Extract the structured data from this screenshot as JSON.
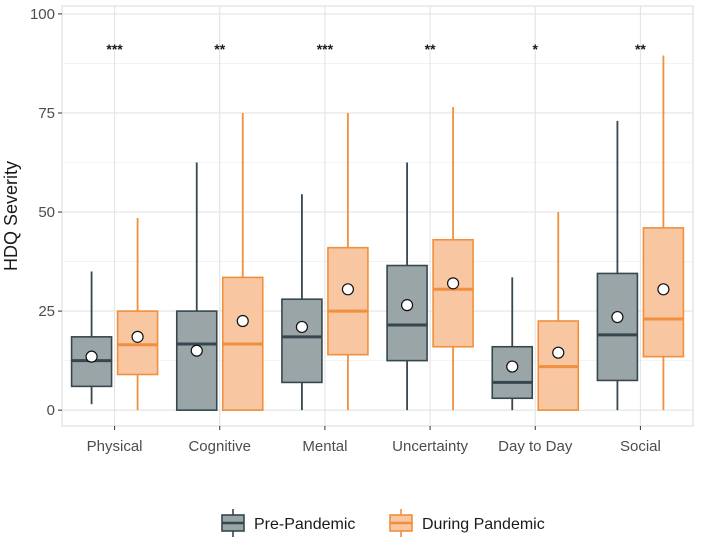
{
  "chart_data": {
    "type": "boxplot",
    "title": "",
    "xlabel": "",
    "ylabel": "HDQ Severity",
    "ylim": [
      -4,
      102
    ],
    "yticks": [
      0,
      25,
      50,
      75,
      100
    ],
    "grid": true,
    "legend_position": "bottom",
    "categories": [
      "Physical",
      "Cognitive",
      "Mental",
      "Uncertainty",
      "Day to Day",
      "Social"
    ],
    "significance": [
      "***",
      "**",
      "***",
      "**",
      "*",
      "**"
    ],
    "series": [
      {
        "name": "Pre-Pandemic",
        "fill": "#9aa5a8",
        "stroke": "#37474f",
        "boxes": [
          {
            "whisker_low": 1.5,
            "q1": 6,
            "median": 12.5,
            "q3": 18.5,
            "whisker_high": 35,
            "mean": 13.5
          },
          {
            "whisker_low": 0,
            "q1": 0,
            "median": 16.7,
            "q3": 25,
            "whisker_high": 62.5,
            "mean": 15
          },
          {
            "whisker_low": 0,
            "q1": 7,
            "median": 18.5,
            "q3": 28,
            "whisker_high": 54.5,
            "mean": 21
          },
          {
            "whisker_low": 0,
            "q1": 12.5,
            "median": 21.5,
            "q3": 36.5,
            "whisker_high": 62.5,
            "mean": 26.5
          },
          {
            "whisker_low": 0,
            "q1": 3,
            "median": 7,
            "q3": 16,
            "whisker_high": 33.5,
            "mean": 11
          },
          {
            "whisker_low": 0,
            "q1": 7.5,
            "median": 19,
            "q3": 34.5,
            "whisker_high": 73,
            "mean": 23.5
          }
        ]
      },
      {
        "name": "During Pandemic",
        "fill": "#f8c6a0",
        "stroke": "#f0903e",
        "boxes": [
          {
            "whisker_low": 0,
            "q1": 9,
            "median": 16.5,
            "q3": 25,
            "whisker_high": 48.5,
            "mean": 18.5
          },
          {
            "whisker_low": 0,
            "q1": 0,
            "median": 16.7,
            "q3": 33.5,
            "whisker_high": 75,
            "mean": 22.5
          },
          {
            "whisker_low": 0,
            "q1": 14,
            "median": 25,
            "q3": 41,
            "whisker_high": 75,
            "mean": 30.5
          },
          {
            "whisker_low": 0,
            "q1": 16,
            "median": 30.5,
            "q3": 43,
            "whisker_high": 76.5,
            "mean": 32
          },
          {
            "whisker_low": 0,
            "q1": 0,
            "median": 11,
            "q3": 22.5,
            "whisker_high": 50,
            "mean": 14.5
          },
          {
            "whisker_low": 0,
            "q1": 13.5,
            "median": 23,
            "q3": 46,
            "whisker_high": 89.5,
            "mean": 30.5
          }
        ]
      }
    ]
  }
}
